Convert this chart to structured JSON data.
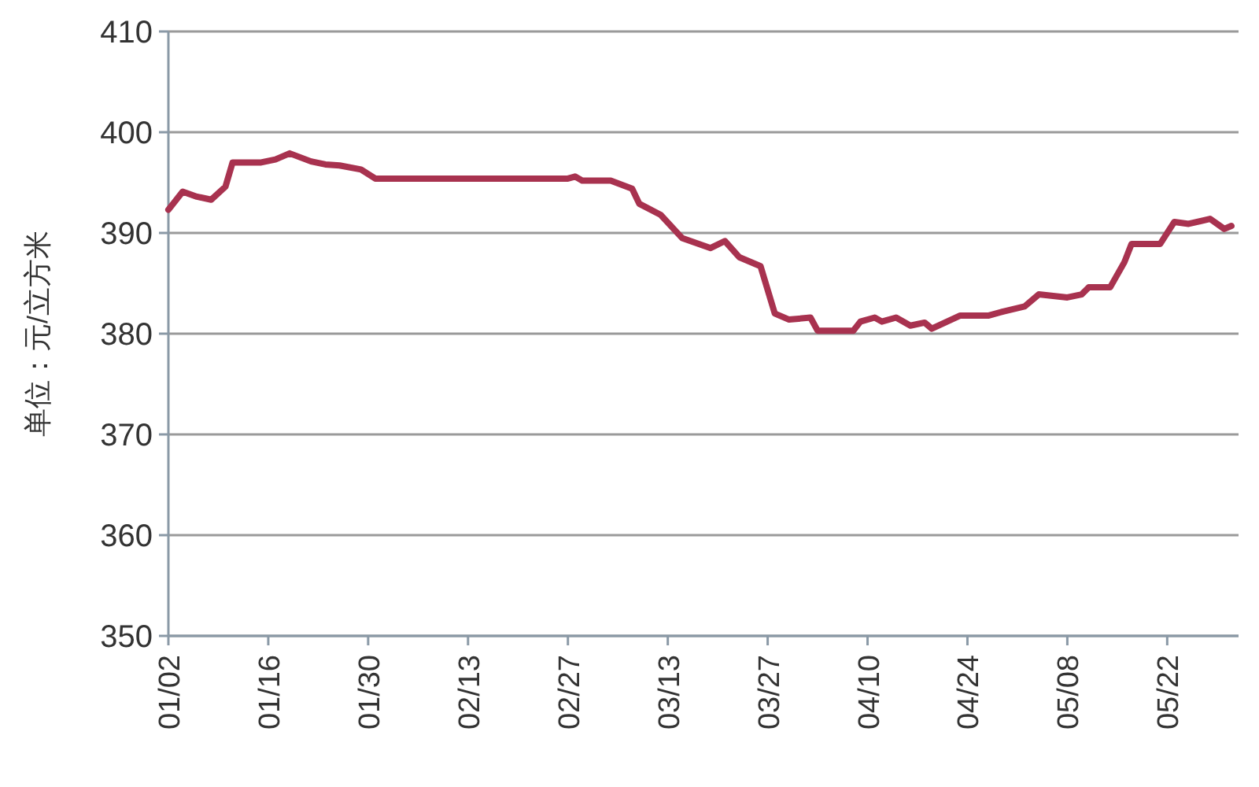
{
  "chart_data": {
    "type": "line",
    "ylabel": "单位：元/立方米",
    "x": [
      "--01-02",
      "--01-04",
      "--01-06",
      "--01-08",
      "--01-10",
      "--01-11",
      "--01-15",
      "--01-17",
      "--01-19",
      "--01-22",
      "--01-24",
      "--01-26",
      "--01-29",
      "--01-31",
      "--02-27",
      "--02-28",
      "--03-01",
      "--03-05",
      "--03-08",
      "--03-09",
      "--03-12",
      "--03-15",
      "--03-19",
      "--03-21",
      "--03-23",
      "--03-26",
      "--03-28",
      "--03-30",
      "--04-02",
      "--04-03",
      "--04-08",
      "--04-09",
      "--04-11",
      "--04-12",
      "--04-14",
      "--04-16",
      "--04-18",
      "--04-19",
      "--04-23",
      "--04-27",
      "--04-29",
      "--05-02",
      "--05-04",
      "--05-08",
      "--05-10",
      "--05-11",
      "--05-14",
      "--05-16",
      "--05-17",
      "--05-21",
      "--05-23",
      "--05-25",
      "--05-28",
      "--05-30",
      "--05-31"
    ],
    "series": [
      {
        "color": "#a8324f",
        "values": [
          392.3,
          394.1,
          393.6,
          393.3,
          394.6,
          397.0,
          397.0,
          397.3,
          397.9,
          397.1,
          396.8,
          396.7,
          396.3,
          395.4,
          395.4,
          395.6,
          395.2,
          395.2,
          394.4,
          392.9,
          391.8,
          389.5,
          388.5,
          389.2,
          387.6,
          386.7,
          382.0,
          381.4,
          381.6,
          380.3,
          380.3,
          381.2,
          381.6,
          381.2,
          381.6,
          380.8,
          381.1,
          380.5,
          381.8,
          381.8,
          382.2,
          382.7,
          383.9,
          383.6,
          383.9,
          384.6,
          384.6,
          387.1,
          388.9,
          388.9,
          391.1,
          390.9,
          391.4,
          390.4,
          390.7
        ]
      }
    ],
    "xlim": [
      "--01-02",
      "--06-01"
    ],
    "xticks": [
      {
        "value": "--01-02",
        "label": "01/02"
      },
      {
        "value": "--01-16",
        "label": "01/16"
      },
      {
        "value": "--01-30",
        "label": "01/30"
      },
      {
        "value": "--02-13",
        "label": "02/13"
      },
      {
        "value": "--02-27",
        "label": "02/27"
      },
      {
        "value": "--03-13",
        "label": "03/13"
      },
      {
        "value": "--03-27",
        "label": "03/27"
      },
      {
        "value": "--04-10",
        "label": "04/10"
      },
      {
        "value": "--04-24",
        "label": "04/24"
      },
      {
        "value": "--05-08",
        "label": "05/08"
      },
      {
        "value": "--05-22",
        "label": "05/22"
      }
    ],
    "ylim": [
      350,
      410
    ],
    "yticks": [
      350,
      360,
      370,
      380,
      390,
      400,
      410
    ],
    "grid": "y",
    "marker": "none",
    "line_style": "solid"
  }
}
